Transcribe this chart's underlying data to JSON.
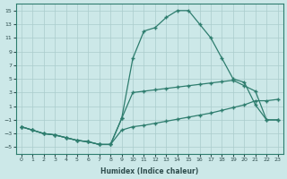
{
  "xlabel": "Humidex (Indice chaleur)",
  "background_color": "#cce8e8",
  "grid_color": "#aacccc",
  "line_color": "#2e7d6e",
  "ylim": [
    -6,
    16
  ],
  "xlim": [
    -0.5,
    23.5
  ],
  "yticks": [
    -5,
    -3,
    -1,
    1,
    3,
    5,
    7,
    9,
    11,
    13,
    15
  ],
  "xticks": [
    0,
    1,
    2,
    3,
    4,
    5,
    6,
    7,
    8,
    9,
    10,
    11,
    12,
    13,
    14,
    15,
    16,
    17,
    18,
    19,
    20,
    21,
    22,
    23
  ],
  "curve_top_x": [
    0,
    1,
    2,
    3,
    4,
    5,
    6,
    7,
    8,
    9,
    10,
    11,
    12,
    13,
    14,
    15,
    16,
    17,
    18,
    19,
    20,
    21,
    22,
    23
  ],
  "curve_top_y": [
    -2,
    -2.5,
    -3,
    -3.2,
    -3.6,
    -4,
    -4.2,
    -4.6,
    -4.6,
    -0.8,
    8,
    12,
    12.5,
    14,
    15,
    15,
    13,
    11,
    8,
    5,
    4.5,
    1.2,
    -1,
    -1
  ],
  "curve_mid_x": [
    0,
    1,
    2,
    3,
    4,
    5,
    6,
    7,
    8,
    9,
    10,
    11,
    12,
    13,
    14,
    15,
    16,
    17,
    18,
    19,
    20,
    21,
    22,
    23
  ],
  "curve_mid_y": [
    -2,
    -2.5,
    -3,
    -3.2,
    -3.6,
    -4,
    -4.2,
    -4.6,
    -4.6,
    -0.8,
    3.0,
    3.2,
    3.4,
    3.6,
    3.8,
    4.0,
    4.2,
    4.4,
    4.6,
    4.8,
    4.0,
    3.2,
    -1.0,
    -1.0
  ],
  "curve_bot_x": [
    0,
    1,
    2,
    3,
    4,
    5,
    6,
    7,
    8,
    9,
    10,
    11,
    12,
    13,
    14,
    15,
    16,
    17,
    18,
    19,
    20,
    21,
    22,
    23
  ],
  "curve_bot_y": [
    -2,
    -2.5,
    -3,
    -3.2,
    -3.6,
    -4,
    -4.2,
    -4.6,
    -4.6,
    -2.5,
    -2.0,
    -1.8,
    -1.5,
    -1.2,
    -0.9,
    -0.6,
    -0.3,
    0.0,
    0.4,
    0.8,
    1.2,
    1.8,
    1.8,
    2.0
  ]
}
